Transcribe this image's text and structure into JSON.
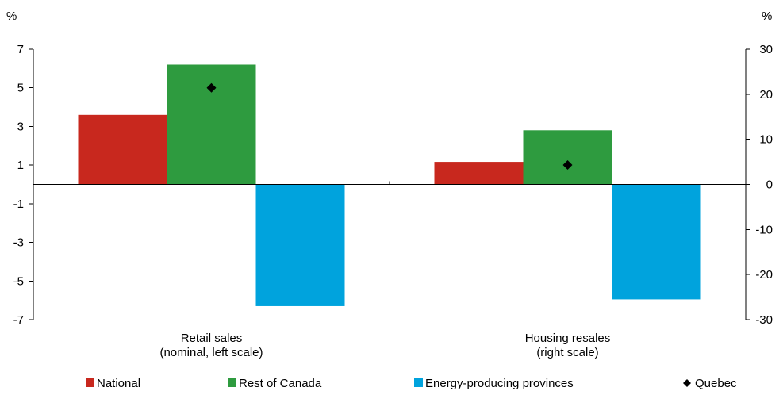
{
  "chart_data": {
    "type": "bar",
    "categories": [
      [
        "Retail sales",
        "(nominal, left scale)"
      ],
      [
        "Housing resales",
        "(right scale)"
      ]
    ],
    "axes": {
      "left": {
        "label": "%",
        "ylim": [
          -7,
          7
        ],
        "ticks": [
          7,
          5,
          3,
          1,
          -1,
          -3,
          -5,
          -7
        ]
      },
      "right": {
        "label": "%",
        "ylim": [
          -30,
          30
        ],
        "ticks": [
          30,
          20,
          10,
          0,
          -10,
          -20,
          -30
        ]
      }
    },
    "series": [
      {
        "name": "National",
        "color": "#C8281E",
        "type": "bar",
        "values": [
          3.6,
          5.0
        ],
        "axis": [
          "left",
          "right"
        ]
      },
      {
        "name": "Rest of Canada",
        "color": "#2E9B3F",
        "type": "bar",
        "values": [
          6.2,
          12.0
        ],
        "axis": [
          "left",
          "right"
        ]
      },
      {
        "name": "Energy-producing provinces",
        "color": "#00A3DD",
        "type": "bar",
        "values": [
          -6.3,
          -25.5
        ],
        "axis": [
          "left",
          "right"
        ]
      },
      {
        "name": "Quebec",
        "color": "#000000",
        "type": "marker",
        "values": [
          5.0,
          4.3
        ],
        "axis": [
          "left",
          "right"
        ]
      }
    ],
    "legend": {
      "position": "bottom"
    },
    "grid": false
  }
}
